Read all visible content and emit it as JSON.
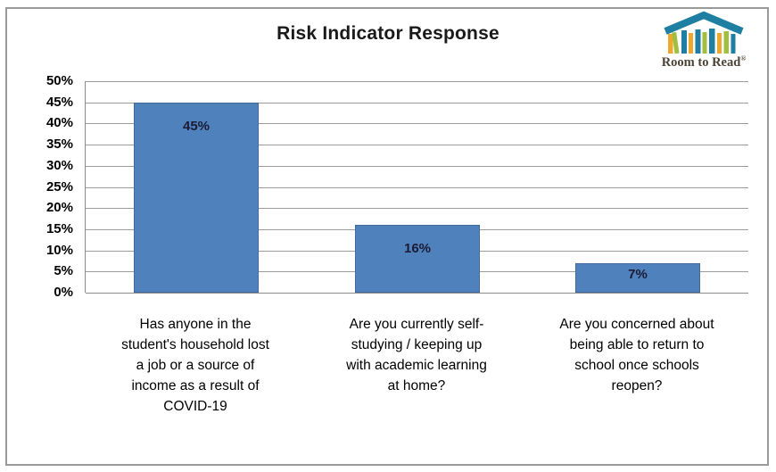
{
  "chart_data": {
    "type": "bar",
    "title": "Risk Indicator Response",
    "categories": [
      "Has anyone in the student's household lost a job or a source of income as a result of COVID-19",
      "Are you currently self-studying / keeping up with academic learning at home?",
      "Are you concerned about being able to return to school once schools reopen?"
    ],
    "category_lines": [
      [
        "Has anyone in the",
        "student's household lost",
        "a job or a source of",
        "income as a result of",
        "COVID-19"
      ],
      [
        "Are you currently self-",
        "studying / keeping up",
        "with academic learning",
        "at home?"
      ],
      [
        "Are you concerned about",
        "being able to  return to",
        "school once schools",
        "reopen?"
      ]
    ],
    "values": [
      45,
      16,
      7
    ],
    "data_labels": [
      "45%",
      "16%",
      "7%"
    ],
    "ylim": [
      0,
      50
    ],
    "ytick_step": 5,
    "ytick_labels": [
      "50%",
      "45%",
      "40%",
      "35%",
      "30%",
      "25%",
      "20%",
      "15%",
      "10%",
      "5%",
      "0%"
    ],
    "xlabel": "",
    "ylabel": "",
    "legend": "none",
    "grid": "on",
    "bar_color": "#4f81bd",
    "bar_border_color": "#41699b",
    "gridline_color": "#9c9c9c",
    "axis_line_color": "#8c8c8c",
    "data_label_color": "#1b1b35"
  },
  "logo": {
    "brand": "Room to Read",
    "text": "Room to Read",
    "registered_mark": "®",
    "roof_color": "#1f7fa3",
    "book_colors": {
      "yellow": "#efa82f",
      "green": "#a0bf3f",
      "teal": "#1f7fa3"
    },
    "text_color": "#4c4337"
  },
  "frame": {
    "border_color": "#9a9a9a"
  }
}
